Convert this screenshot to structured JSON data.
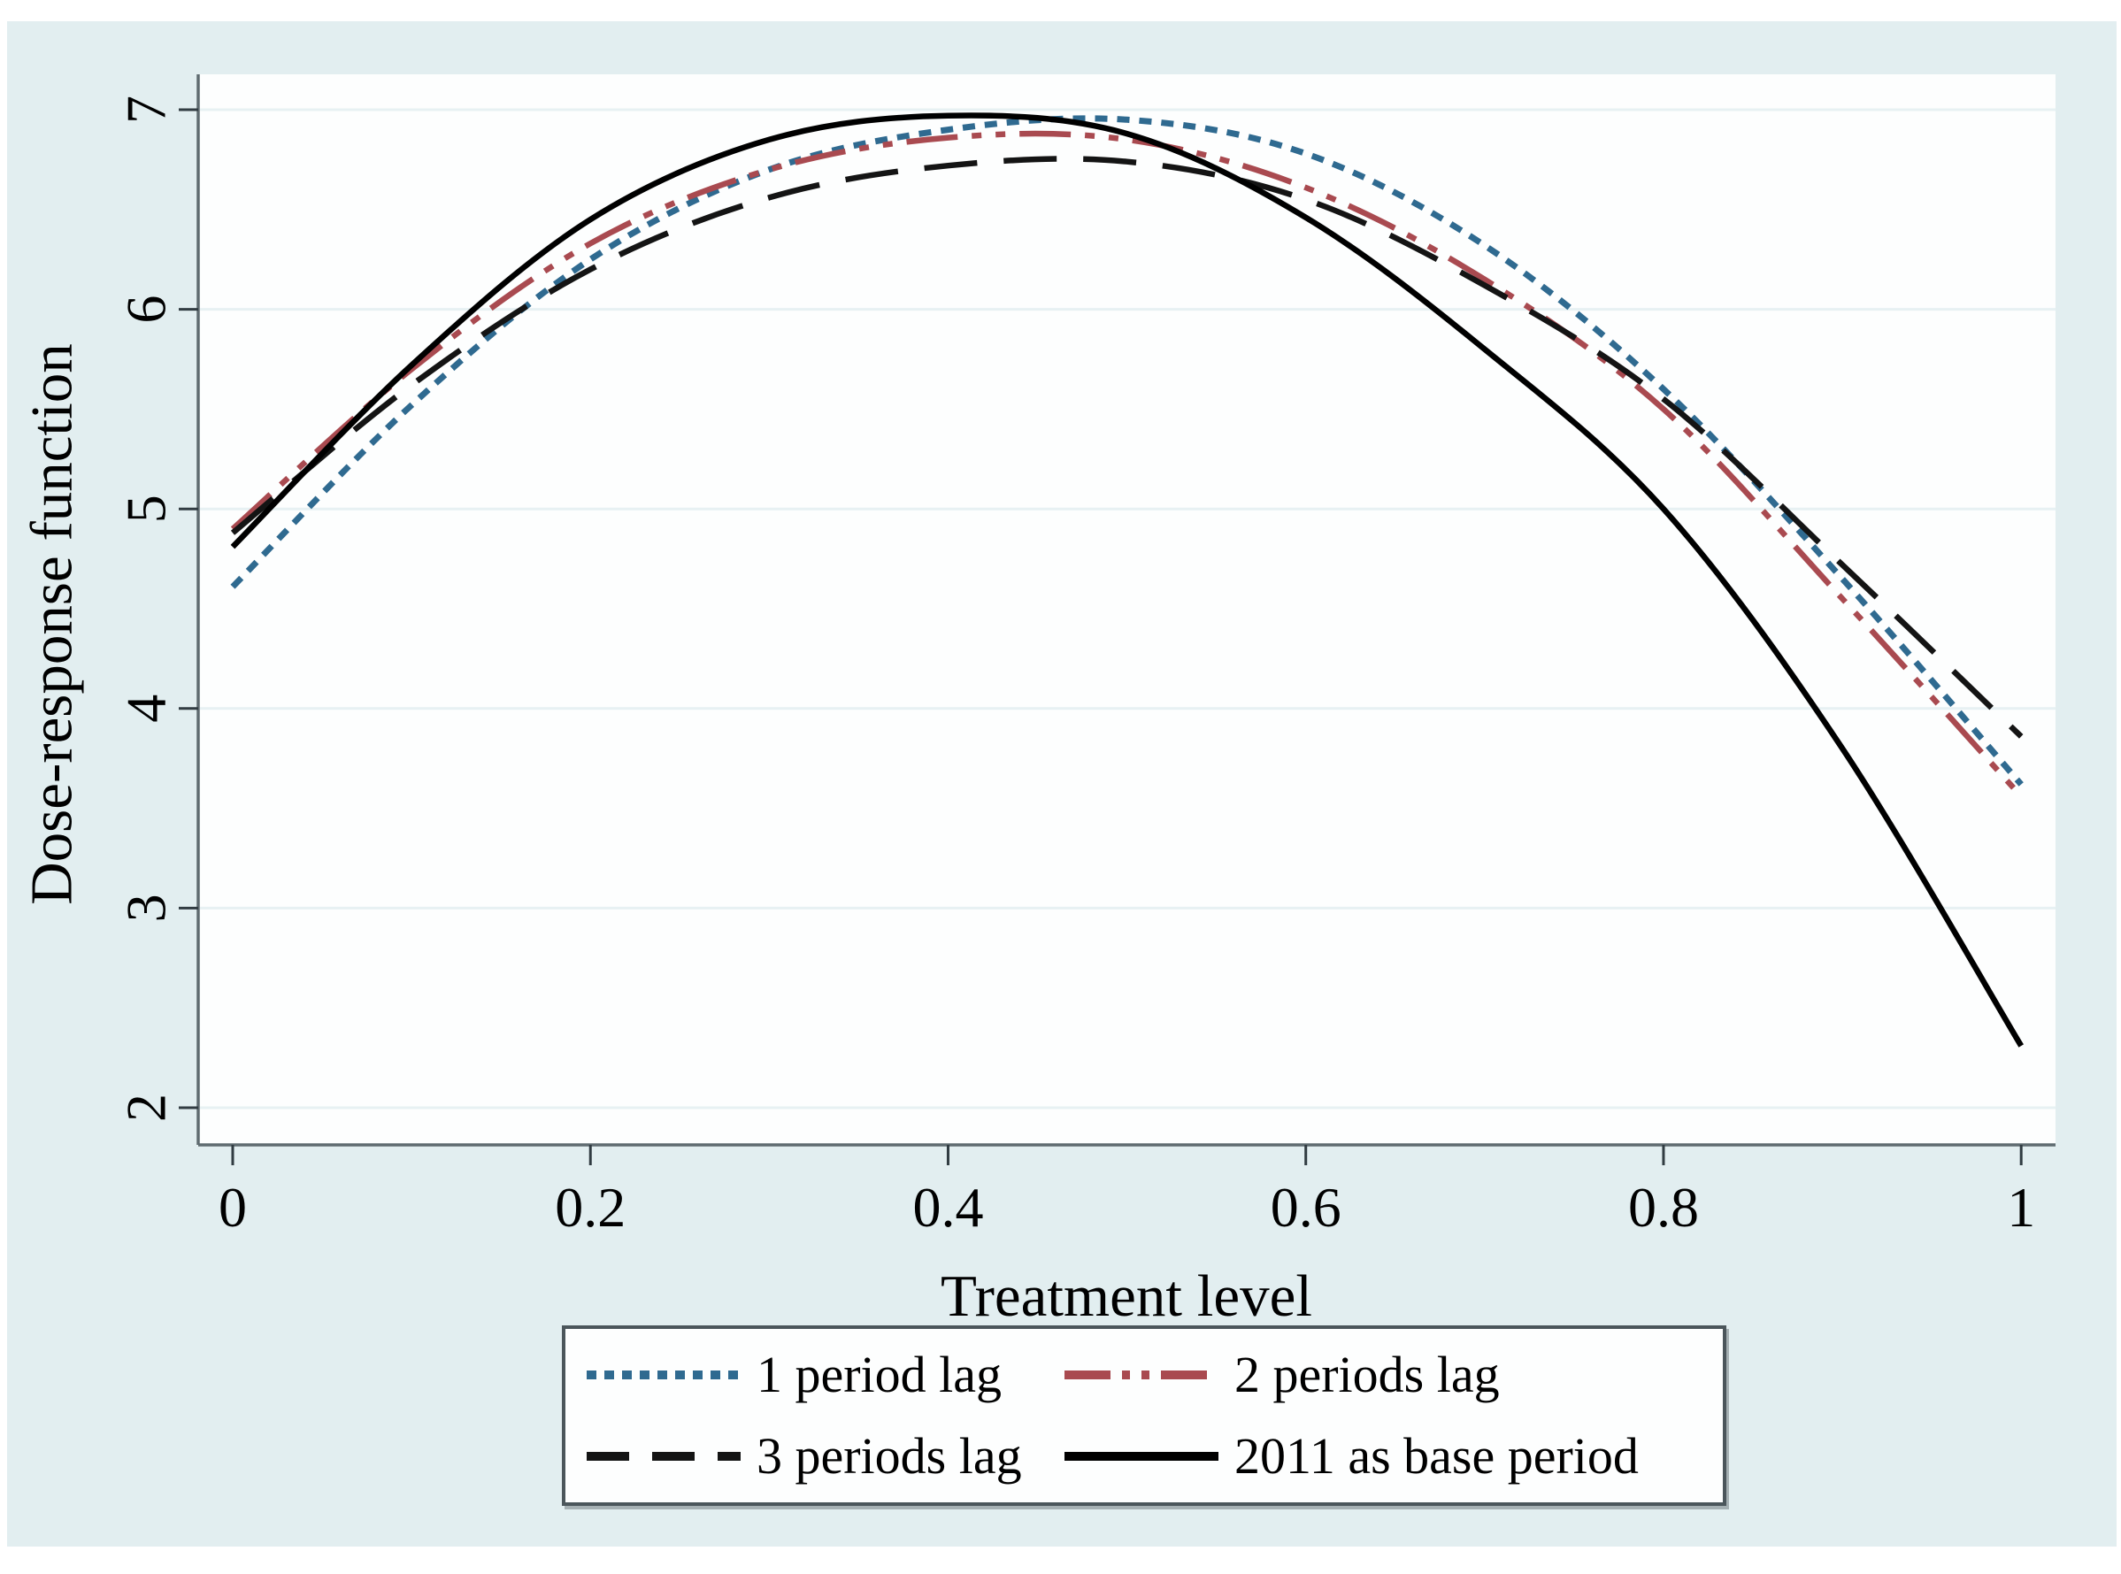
{
  "figure": {
    "canvas_color": "#e2eef0",
    "plot_background": "#fdfefe",
    "grid_color": "#e7f1f3",
    "axis_color": "#5f6b70",
    "tick_color": "#313c42",
    "text_color": "#000000"
  },
  "chart_data": {
    "type": "line",
    "title": "",
    "xlabel": "Treatment level",
    "ylabel": "Dose-response function",
    "xlim": [
      0,
      1
    ],
    "ylim": [
      2,
      7
    ],
    "grid": "horizontal",
    "legend_position": "bottom",
    "xticks": [
      0,
      0.2,
      0.4,
      0.6,
      0.8,
      1
    ],
    "xtick_labels": [
      "0",
      "0.2",
      "0.4",
      "0.6",
      "0.8",
      "1"
    ],
    "yticks": [
      2,
      3,
      4,
      5,
      6,
      7
    ],
    "ytick_labels": [
      "2",
      "3",
      "4",
      "5",
      "6",
      "7"
    ],
    "x": [
      0,
      0.1,
      0.2,
      0.3,
      0.4,
      0.5,
      0.6,
      0.7,
      0.8,
      0.9,
      1.0
    ],
    "series": [
      {
        "name": "1 period lag",
        "color": "#2f6a90",
        "dash": "dotted",
        "values": [
          4.61,
          5.52,
          6.25,
          6.7,
          6.9,
          6.95,
          6.78,
          6.32,
          5.6,
          4.65,
          3.62
        ]
      },
      {
        "name": "2 periods lag",
        "color": "#a94a50",
        "dash": "dash-dot-dot",
        "values": [
          4.9,
          5.7,
          6.33,
          6.7,
          6.86,
          6.85,
          6.61,
          6.15,
          5.5,
          4.55,
          3.56
        ]
      },
      {
        "name": "3 periods lag",
        "color": "#141414",
        "dash": "long-dash",
        "values": [
          4.88,
          5.62,
          6.2,
          6.56,
          6.72,
          6.74,
          6.55,
          6.12,
          5.55,
          4.72,
          3.86
        ]
      },
      {
        "name": "2011 as base period",
        "color": "#000000",
        "dash": "solid",
        "values": [
          4.81,
          5.72,
          6.45,
          6.85,
          6.97,
          6.88,
          6.46,
          5.8,
          5.0,
          3.8,
          2.31
        ]
      }
    ]
  }
}
